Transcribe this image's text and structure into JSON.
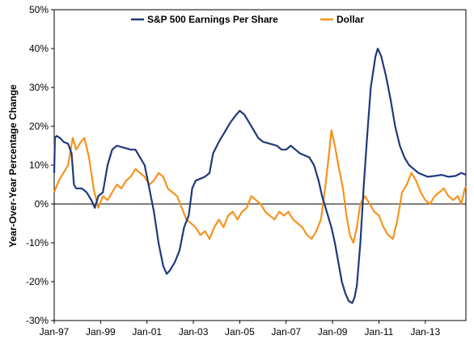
{
  "chart_data": {
    "type": "line",
    "title": "",
    "xlabel": "",
    "ylabel": "Year-Over-Year Percentage Change",
    "ylim": [
      -0.3,
      0.5
    ],
    "xlim": [
      1997.0,
      2014.75
    ],
    "yticks": [
      {
        "value": 0.5,
        "label": "50%"
      },
      {
        "value": 0.4,
        "label": "40%"
      },
      {
        "value": 0.3,
        "label": "30%"
      },
      {
        "value": 0.2,
        "label": "20%"
      },
      {
        "value": 0.1,
        "label": "10%"
      },
      {
        "value": 0.0,
        "label": "0%"
      },
      {
        "value": -0.1,
        "label": "-10%"
      },
      {
        "value": -0.2,
        "label": "-20%"
      },
      {
        "value": -0.3,
        "label": "-30%"
      }
    ],
    "xticks": [
      {
        "value": 1997,
        "label": "Jan-97"
      },
      {
        "value": 1999,
        "label": "Jan-99"
      },
      {
        "value": 2001,
        "label": "Jan-01"
      },
      {
        "value": 2003,
        "label": "Jan-03"
      },
      {
        "value": 2005,
        "label": "Jan-05"
      },
      {
        "value": 2007,
        "label": "Jan-07"
      },
      {
        "value": 2009,
        "label": "Jan-09"
      },
      {
        "value": 2011,
        "label": "Jan-11"
      },
      {
        "value": 2013,
        "label": "Jan-13"
      }
    ],
    "legend_position": "top",
    "grid": false,
    "series": [
      {
        "name": "S&P 500 Earnings Per Share",
        "color": "#1f3a7a",
        "points": [
          [
            1997.0,
            0.08
          ],
          [
            1997.03,
            0.17
          ],
          [
            1997.1,
            0.175
          ],
          [
            1997.25,
            0.17
          ],
          [
            1997.4,
            0.16
          ],
          [
            1997.6,
            0.155
          ],
          [
            1997.75,
            0.13
          ],
          [
            1997.85,
            0.05
          ],
          [
            1997.95,
            0.04
          ],
          [
            1998.2,
            0.04
          ],
          [
            1998.4,
            0.03
          ],
          [
            1998.6,
            0.01
          ],
          [
            1998.75,
            -0.01
          ],
          [
            1998.9,
            0.02
          ],
          [
            1999.1,
            0.03
          ],
          [
            1999.3,
            0.1
          ],
          [
            1999.5,
            0.14
          ],
          [
            1999.7,
            0.15
          ],
          [
            2000.0,
            0.145
          ],
          [
            2000.3,
            0.14
          ],
          [
            2000.5,
            0.14
          ],
          [
            2000.7,
            0.12
          ],
          [
            2000.9,
            0.1
          ],
          [
            2001.1,
            0.04
          ],
          [
            2001.3,
            -0.02
          ],
          [
            2001.5,
            -0.1
          ],
          [
            2001.7,
            -0.16
          ],
          [
            2001.85,
            -0.18
          ],
          [
            2002.0,
            -0.17
          ],
          [
            2002.2,
            -0.15
          ],
          [
            2002.4,
            -0.12
          ],
          [
            2002.6,
            -0.06
          ],
          [
            2002.8,
            -0.03
          ],
          [
            2002.95,
            0.04
          ],
          [
            2003.1,
            0.06
          ],
          [
            2003.3,
            0.065
          ],
          [
            2003.5,
            0.07
          ],
          [
            2003.7,
            0.08
          ],
          [
            2003.85,
            0.13
          ],
          [
            2004.1,
            0.16
          ],
          [
            2004.4,
            0.19
          ],
          [
            2004.6,
            0.21
          ],
          [
            2004.85,
            0.23
          ],
          [
            2005.0,
            0.24
          ],
          [
            2005.2,
            0.23
          ],
          [
            2005.4,
            0.21
          ],
          [
            2005.6,
            0.19
          ],
          [
            2005.8,
            0.17
          ],
          [
            2006.0,
            0.16
          ],
          [
            2006.3,
            0.155
          ],
          [
            2006.6,
            0.15
          ],
          [
            2006.8,
            0.14
          ],
          [
            2007.0,
            0.14
          ],
          [
            2007.2,
            0.15
          ],
          [
            2007.4,
            0.14
          ],
          [
            2007.6,
            0.13
          ],
          [
            2007.8,
            0.125
          ],
          [
            2008.0,
            0.12
          ],
          [
            2008.2,
            0.1
          ],
          [
            2008.4,
            0.06
          ],
          [
            2008.55,
            0.02
          ],
          [
            2008.65,
            0.0
          ],
          [
            2008.8,
            -0.03
          ],
          [
            2008.95,
            -0.06
          ],
          [
            2009.1,
            -0.1
          ],
          [
            2009.25,
            -0.15
          ],
          [
            2009.4,
            -0.2
          ],
          [
            2009.55,
            -0.23
          ],
          [
            2009.7,
            -0.25
          ],
          [
            2009.85,
            -0.255
          ],
          [
            2009.95,
            -0.24
          ],
          [
            2010.05,
            -0.21
          ],
          [
            2010.2,
            -0.1
          ],
          [
            2010.35,
            0.05
          ],
          [
            2010.5,
            0.18
          ],
          [
            2010.65,
            0.3
          ],
          [
            2010.85,
            0.38
          ],
          [
            2010.95,
            0.4
          ],
          [
            2011.1,
            0.38
          ],
          [
            2011.3,
            0.33
          ],
          [
            2011.5,
            0.27
          ],
          [
            2011.7,
            0.2
          ],
          [
            2011.9,
            0.15
          ],
          [
            2012.1,
            0.12
          ],
          [
            2012.3,
            0.1
          ],
          [
            2012.5,
            0.09
          ],
          [
            2012.7,
            0.08
          ],
          [
            2012.9,
            0.075
          ],
          [
            2013.1,
            0.07
          ],
          [
            2013.4,
            0.072
          ],
          [
            2013.7,
            0.075
          ],
          [
            2014.0,
            0.07
          ],
          [
            2014.3,
            0.072
          ],
          [
            2014.55,
            0.08
          ],
          [
            2014.75,
            0.075
          ]
        ]
      },
      {
        "name": "Dollar",
        "color": "#f7931e",
        "points": [
          [
            1997.0,
            0.03
          ],
          [
            1997.2,
            0.06
          ],
          [
            1997.4,
            0.08
          ],
          [
            1997.6,
            0.1
          ],
          [
            1997.8,
            0.17
          ],
          [
            1997.95,
            0.14
          ],
          [
            1998.15,
            0.16
          ],
          [
            1998.3,
            0.17
          ],
          [
            1998.5,
            0.12
          ],
          [
            1998.7,
            0.04
          ],
          [
            1998.9,
            -0.01
          ],
          [
            1999.1,
            0.02
          ],
          [
            1999.3,
            0.01
          ],
          [
            1999.5,
            0.03
          ],
          [
            1999.7,
            0.05
          ],
          [
            1999.9,
            0.04
          ],
          [
            2000.1,
            0.06
          ],
          [
            2000.3,
            0.07
          ],
          [
            2000.5,
            0.09
          ],
          [
            2000.7,
            0.08
          ],
          [
            2000.9,
            0.07
          ],
          [
            2001.1,
            0.05
          ],
          [
            2001.3,
            0.06
          ],
          [
            2001.5,
            0.08
          ],
          [
            2001.7,
            0.07
          ],
          [
            2001.9,
            0.04
          ],
          [
            2002.1,
            0.03
          ],
          [
            2002.3,
            0.02
          ],
          [
            2002.5,
            -0.01
          ],
          [
            2002.7,
            -0.04
          ],
          [
            2002.9,
            -0.05
          ],
          [
            2003.1,
            -0.06
          ],
          [
            2003.3,
            -0.08
          ],
          [
            2003.5,
            -0.07
          ],
          [
            2003.7,
            -0.09
          ],
          [
            2003.9,
            -0.06
          ],
          [
            2004.1,
            -0.04
          ],
          [
            2004.3,
            -0.06
          ],
          [
            2004.5,
            -0.03
          ],
          [
            2004.7,
            -0.02
          ],
          [
            2004.9,
            -0.04
          ],
          [
            2005.1,
            -0.02
          ],
          [
            2005.3,
            -0.01
          ],
          [
            2005.5,
            0.02
          ],
          [
            2005.7,
            0.01
          ],
          [
            2005.9,
            0.0
          ],
          [
            2006.1,
            -0.02
          ],
          [
            2006.3,
            -0.03
          ],
          [
            2006.5,
            -0.04
          ],
          [
            2006.7,
            -0.02
          ],
          [
            2006.9,
            -0.03
          ],
          [
            2007.1,
            -0.02
          ],
          [
            2007.3,
            -0.04
          ],
          [
            2007.5,
            -0.05
          ],
          [
            2007.7,
            -0.06
          ],
          [
            2007.9,
            -0.08
          ],
          [
            2008.1,
            -0.09
          ],
          [
            2008.3,
            -0.07
          ],
          [
            2008.5,
            -0.04
          ],
          [
            2008.7,
            0.05
          ],
          [
            2008.85,
            0.13
          ],
          [
            2008.95,
            0.19
          ],
          [
            2009.1,
            0.15
          ],
          [
            2009.25,
            0.1
          ],
          [
            2009.45,
            0.04
          ],
          [
            2009.6,
            -0.03
          ],
          [
            2009.75,
            -0.08
          ],
          [
            2009.9,
            -0.1
          ],
          [
            2010.05,
            -0.06
          ],
          [
            2010.2,
            0.0
          ],
          [
            2010.4,
            0.02
          ],
          [
            2010.6,
            0.0
          ],
          [
            2010.8,
            -0.02
          ],
          [
            2011.0,
            -0.03
          ],
          [
            2011.2,
            -0.06
          ],
          [
            2011.4,
            -0.08
          ],
          [
            2011.6,
            -0.09
          ],
          [
            2011.8,
            -0.04
          ],
          [
            2012.0,
            0.03
          ],
          [
            2012.2,
            0.05
          ],
          [
            2012.4,
            0.08
          ],
          [
            2012.6,
            0.06
          ],
          [
            2012.8,
            0.03
          ],
          [
            2013.0,
            0.01
          ],
          [
            2013.2,
            0.0
          ],
          [
            2013.4,
            0.02
          ],
          [
            2013.6,
            0.03
          ],
          [
            2013.8,
            0.04
          ],
          [
            2014.0,
            0.02
          ],
          [
            2014.2,
            0.01
          ],
          [
            2014.4,
            0.02
          ],
          [
            2014.55,
            0.0
          ],
          [
            2014.7,
            0.04
          ],
          [
            2014.75,
            0.045
          ]
        ]
      }
    ]
  }
}
